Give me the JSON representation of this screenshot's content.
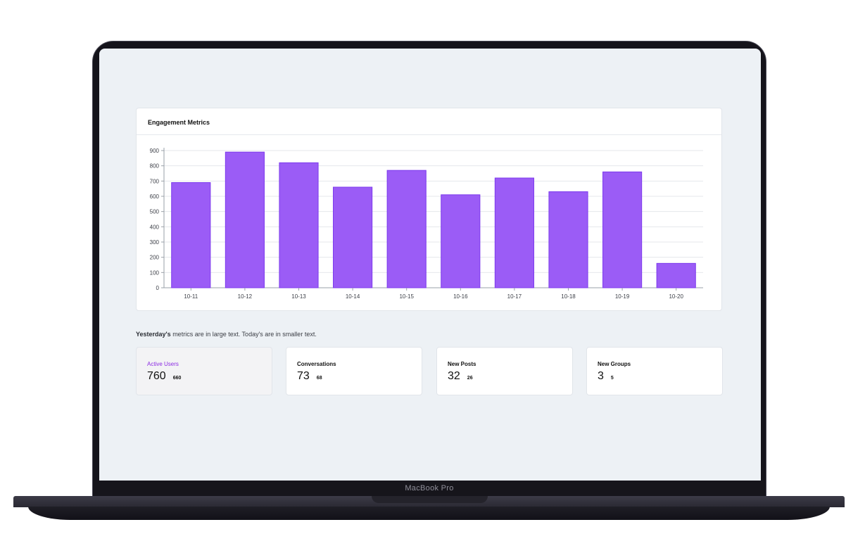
{
  "device": {
    "brand_label": "MacBook Pro"
  },
  "dashboard": {
    "chart_card_title": "Engagement Metrics",
    "caption_bold": "Yesterday's",
    "caption_rest": " metrics are in large text. Today's are in smaller text.",
    "accent_color": "#9b5cf6",
    "metrics": [
      {
        "label": "Active Users",
        "yesterday": "760",
        "today": "660",
        "active": true
      },
      {
        "label": "Conversations",
        "yesterday": "73",
        "today": "68",
        "active": false
      },
      {
        "label": "New Posts",
        "yesterday": "32",
        "today": "26",
        "active": false
      },
      {
        "label": "New Groups",
        "yesterday": "3",
        "today": "5",
        "active": false
      }
    ]
  },
  "chart_data": {
    "type": "bar",
    "categories": [
      "10-11",
      "10-12",
      "10-13",
      "10-14",
      "10-15",
      "10-16",
      "10-17",
      "10-18",
      "10-19",
      "10-20"
    ],
    "values": [
      690,
      890,
      820,
      660,
      770,
      610,
      720,
      630,
      760,
      160
    ],
    "ylim": [
      0,
      900
    ],
    "yticks": [
      0,
      100,
      200,
      300,
      400,
      500,
      600,
      700,
      800,
      900
    ],
    "grid": true,
    "bar_color": "#9b5cf6"
  }
}
